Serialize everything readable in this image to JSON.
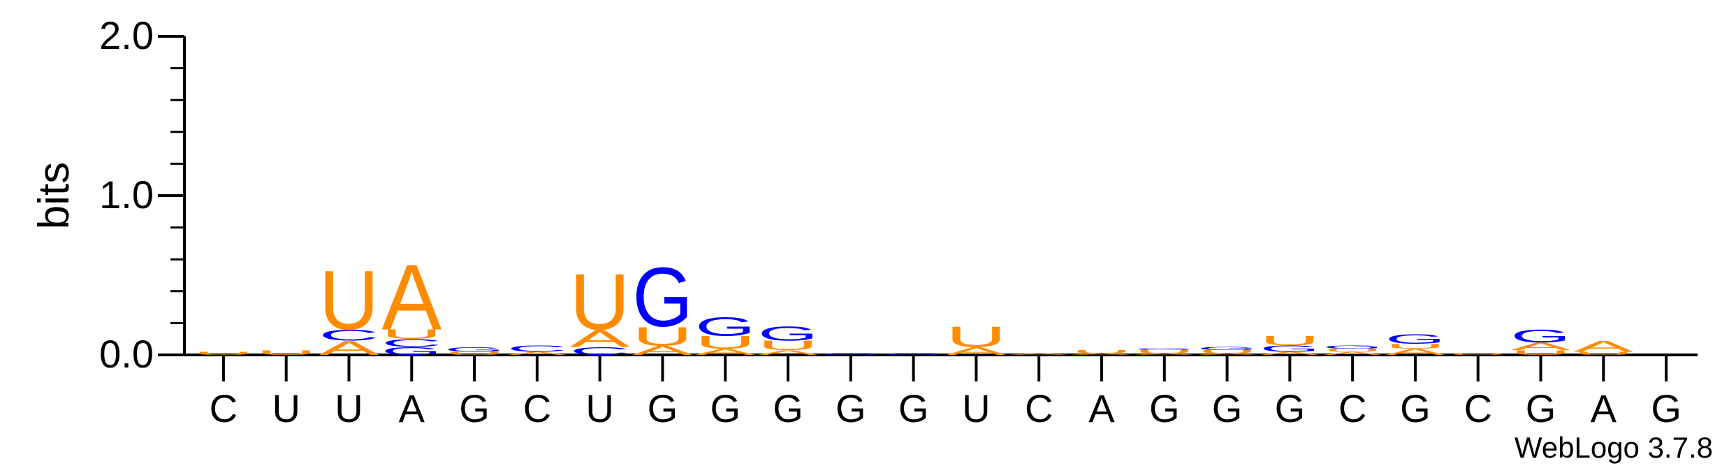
{
  "chart_data": {
    "type": "sequence-logo",
    "ylabel": "bits",
    "ylim": [
      0,
      2.0
    ],
    "yticks": [
      "0.0",
      "1.0",
      "2.0"
    ],
    "x_labels": [
      "C",
      "U",
      "U",
      "A",
      "G",
      "C",
      "U",
      "G",
      "G",
      "G",
      "G",
      "G",
      "U",
      "C",
      "A",
      "G",
      "G",
      "G",
      "C",
      "G",
      "C",
      "G",
      "A",
      "G"
    ],
    "positions": [
      {
        "stack": [
          [
            "U",
            0.02
          ]
        ]
      },
      {
        "stack": [
          [
            "U",
            0.03
          ]
        ]
      },
      {
        "stack": [
          [
            "A",
            0.09
          ],
          [
            "C",
            0.07
          ],
          [
            "U",
            0.38
          ]
        ]
      },
      {
        "stack": [
          [
            "G",
            0.05
          ],
          [
            "C",
            0.05
          ],
          [
            "U",
            0.06
          ],
          [
            "A",
            0.42
          ]
        ]
      },
      {
        "stack": [
          [
            "U",
            0.02
          ],
          [
            "G",
            0.03
          ]
        ]
      },
      {
        "stack": [
          [
            "A",
            0.02
          ],
          [
            "C",
            0.04
          ]
        ]
      },
      {
        "stack": [
          [
            "C",
            0.05
          ],
          [
            "A",
            0.11
          ],
          [
            "U",
            0.36
          ]
        ]
      },
      {
        "stack": [
          [
            "A",
            0.06
          ],
          [
            "U",
            0.12
          ],
          [
            "G",
            0.38
          ]
        ]
      },
      {
        "stack": [
          [
            "A",
            0.04
          ],
          [
            "U",
            0.08
          ],
          [
            "G",
            0.12
          ]
        ]
      },
      {
        "stack": [
          [
            "A",
            0.03
          ],
          [
            "U",
            0.06
          ],
          [
            "G",
            0.09
          ]
        ]
      },
      {
        "stack": [
          [
            "G",
            0.01
          ]
        ]
      },
      {
        "stack": [
          [
            "G",
            0.01
          ]
        ]
      },
      {
        "stack": [
          [
            "A",
            0.05
          ],
          [
            "U",
            0.13
          ]
        ]
      },
      {
        "stack": [
          [
            "A",
            0.01
          ]
        ]
      },
      {
        "stack": [
          [
            "A",
            0.01
          ],
          [
            "U",
            0.02
          ]
        ]
      },
      {
        "stack": [
          [
            "A",
            0.01
          ],
          [
            "U",
            0.02
          ],
          [
            "G",
            0.01
          ]
        ]
      },
      {
        "stack": [
          [
            "A",
            0.01
          ],
          [
            "U",
            0.02
          ],
          [
            "G",
            0.02
          ]
        ]
      },
      {
        "stack": [
          [
            "A",
            0.02
          ],
          [
            "G",
            0.04
          ],
          [
            "U",
            0.06
          ]
        ]
      },
      {
        "stack": [
          [
            "A",
            0.02
          ],
          [
            "U",
            0.02
          ],
          [
            "G",
            0.02
          ]
        ]
      },
      {
        "stack": [
          [
            "A",
            0.04
          ],
          [
            "U",
            0.03
          ],
          [
            "G",
            0.06
          ]
        ]
      },
      {
        "stack": [
          [
            "U",
            0.01
          ]
        ]
      },
      {
        "stack": [
          [
            "U",
            0.03
          ],
          [
            "A",
            0.05
          ],
          [
            "G",
            0.08
          ]
        ]
      },
      {
        "stack": [
          [
            "U",
            0.02
          ],
          [
            "A",
            0.07
          ]
        ]
      },
      {
        "stack": []
      }
    ],
    "colors": {
      "A": "#ff8c00",
      "U": "#ff8c00",
      "G": "#0000ff",
      "C": "#0000ff"
    },
    "grid": false,
    "legend": "none"
  },
  "credit": "WebLogo 3.7.8"
}
